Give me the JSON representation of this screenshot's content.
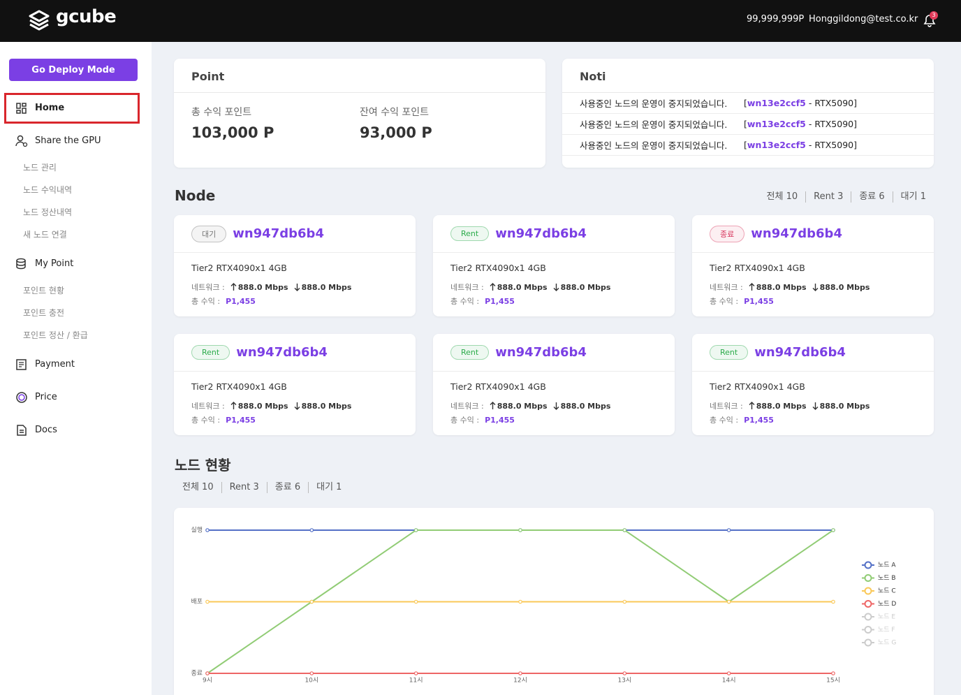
{
  "header": {
    "logo": "gcube",
    "points": "99,999,999P",
    "email": "Honggildong@test.co.kr",
    "notifications": "3"
  },
  "sidebar": {
    "button": "Go Deploy Mode",
    "menu": [
      {
        "label": "Home",
        "active": true
      },
      {
        "label": "Share the GPU",
        "items": [
          "노드 관리",
          "노드 수익내역",
          "노드 정산내역",
          "새 노드 연결"
        ]
      },
      {
        "label": "My Point",
        "items": [
          "포인트 현황",
          "포인트 충전",
          "포인트 정산 / 환급"
        ]
      },
      {
        "label": "Payment"
      },
      {
        "label": "Price"
      },
      {
        "label": "Docs"
      }
    ]
  },
  "point": {
    "title": "Point",
    "items": [
      {
        "label": "총 수익 포인트",
        "value": "103,000 P"
      },
      {
        "label": "잔여 수익 포인트",
        "value": "93,000 P"
      }
    ]
  },
  "noti": {
    "title": "Noti",
    "items": [
      {
        "message": "사용중인 노드의 운영이 중지되었습니다.",
        "open": "[",
        "node": "wn13e2ccf5",
        "detail": " - RTX5090]"
      },
      {
        "message": "사용중인 노드의 운영이 중지되었습니다.",
        "open": "[",
        "node": "wn13e2ccf5",
        "detail": " - RTX5090]"
      },
      {
        "message": "사용중인 노드의 운영이 중지되었습니다.",
        "open": "[",
        "node": "wn13e2ccf5",
        "detail": " - RTX5090]"
      }
    ]
  },
  "node": {
    "title": "Node",
    "filters": [
      "전체 10",
      "Rent 3",
      "종료 6",
      "대기 1"
    ],
    "cards": [
      {
        "status": "대기",
        "status_color": "#777777",
        "id": "wn947db6b4",
        "spec": "Tier2 RTX4090x1 4GB",
        "network_label": "네트워크 :",
        "up": "888.0 Mbps",
        "down": "888.0 Mbps",
        "revenue_label": "총 수익 :",
        "revenue": "P1,455"
      },
      {
        "status": "Rent",
        "status_color": "#2bab4a",
        "id": "wn947db6b4",
        "spec": "Tier2 RTX4090x1 4GB",
        "network_label": "네트워크 :",
        "up": "888.0 Mbps",
        "down": "888.0 Mbps",
        "revenue_label": "총 수익 :",
        "revenue": "P1,455"
      },
      {
        "status": "종료",
        "status_color": "#d6335a",
        "id": "wn947db6b4",
        "spec": "Tier2 RTX4090x1 4GB",
        "network_label": "네트워크 :",
        "up": "888.0 Mbps",
        "down": "888.0 Mbps",
        "revenue_label": "총 수익 :",
        "revenue": "P1,455"
      },
      {
        "status": "Rent",
        "status_color": "#2bab4a",
        "id": "wn947db6b4",
        "spec": "Tier2 RTX4090x1 4GB",
        "network_label": "네트워크 :",
        "up": "888.0 Mbps",
        "down": "888.0 Mbps",
        "revenue_label": "총 수익 :",
        "revenue": "P1,455"
      },
      {
        "status": "Rent",
        "status_color": "#2bab4a",
        "id": "wn947db6b4",
        "spec": "Tier2 RTX4090x1 4GB",
        "network_label": "네트워크 :",
        "up": "888.0 Mbps",
        "down": "888.0 Mbps",
        "revenue_label": "총 수익 :",
        "revenue": "P1,455"
      },
      {
        "status": "Rent",
        "status_color": "#2bab4a",
        "id": "wn947db6b4",
        "spec": "Tier2 RTX4090x1 4GB",
        "network_label": "네트워크 :",
        "up": "888.0 Mbps",
        "down": "888.0 Mbps",
        "revenue_label": "총 수익 :",
        "revenue": "P1,455"
      }
    ]
  },
  "status": {
    "title": "노드 현황",
    "filters": [
      "전체 10",
      "Rent 3",
      "종료 6",
      "대기 1"
    ]
  },
  "chart_data": {
    "type": "line",
    "categories": [
      "9시",
      "10시",
      "11시",
      "12시",
      "13시",
      "14시",
      "15시"
    ],
    "ylim": [
      0,
      2
    ],
    "yticks": [
      {
        "value": 0,
        "label": "종료"
      },
      {
        "value": 1,
        "label": "배포"
      },
      {
        "value": 2,
        "label": "실행"
      }
    ],
    "series": [
      {
        "name": "노드 A",
        "color": "#5470c6",
        "visible": true,
        "values": [
          2,
          2,
          2,
          2,
          2,
          2,
          2
        ]
      },
      {
        "name": "노드 B",
        "color": "#91cc75",
        "visible": true,
        "values": [
          0,
          1,
          2,
          2,
          2,
          1,
          2
        ]
      },
      {
        "name": "노드 C",
        "color": "#fac858",
        "visible": true,
        "values": [
          1,
          1,
          1,
          1,
          1,
          1,
          1
        ]
      },
      {
        "name": "노드 D",
        "color": "#ee6666",
        "visible": true,
        "values": [
          0,
          0,
          0,
          0,
          0,
          0,
          0
        ]
      },
      {
        "name": "노드 E",
        "color": "#cccccc",
        "visible": false,
        "values": [
          null,
          null,
          null,
          null,
          null,
          null,
          null
        ]
      },
      {
        "name": "노드 F",
        "color": "#cccccc",
        "visible": false,
        "values": [
          null,
          null,
          null,
          null,
          null,
          null,
          null
        ]
      },
      {
        "name": "노드 G",
        "color": "#cccccc",
        "visible": false,
        "values": [
          null,
          null,
          null,
          null,
          null,
          null,
          null
        ]
      }
    ]
  }
}
